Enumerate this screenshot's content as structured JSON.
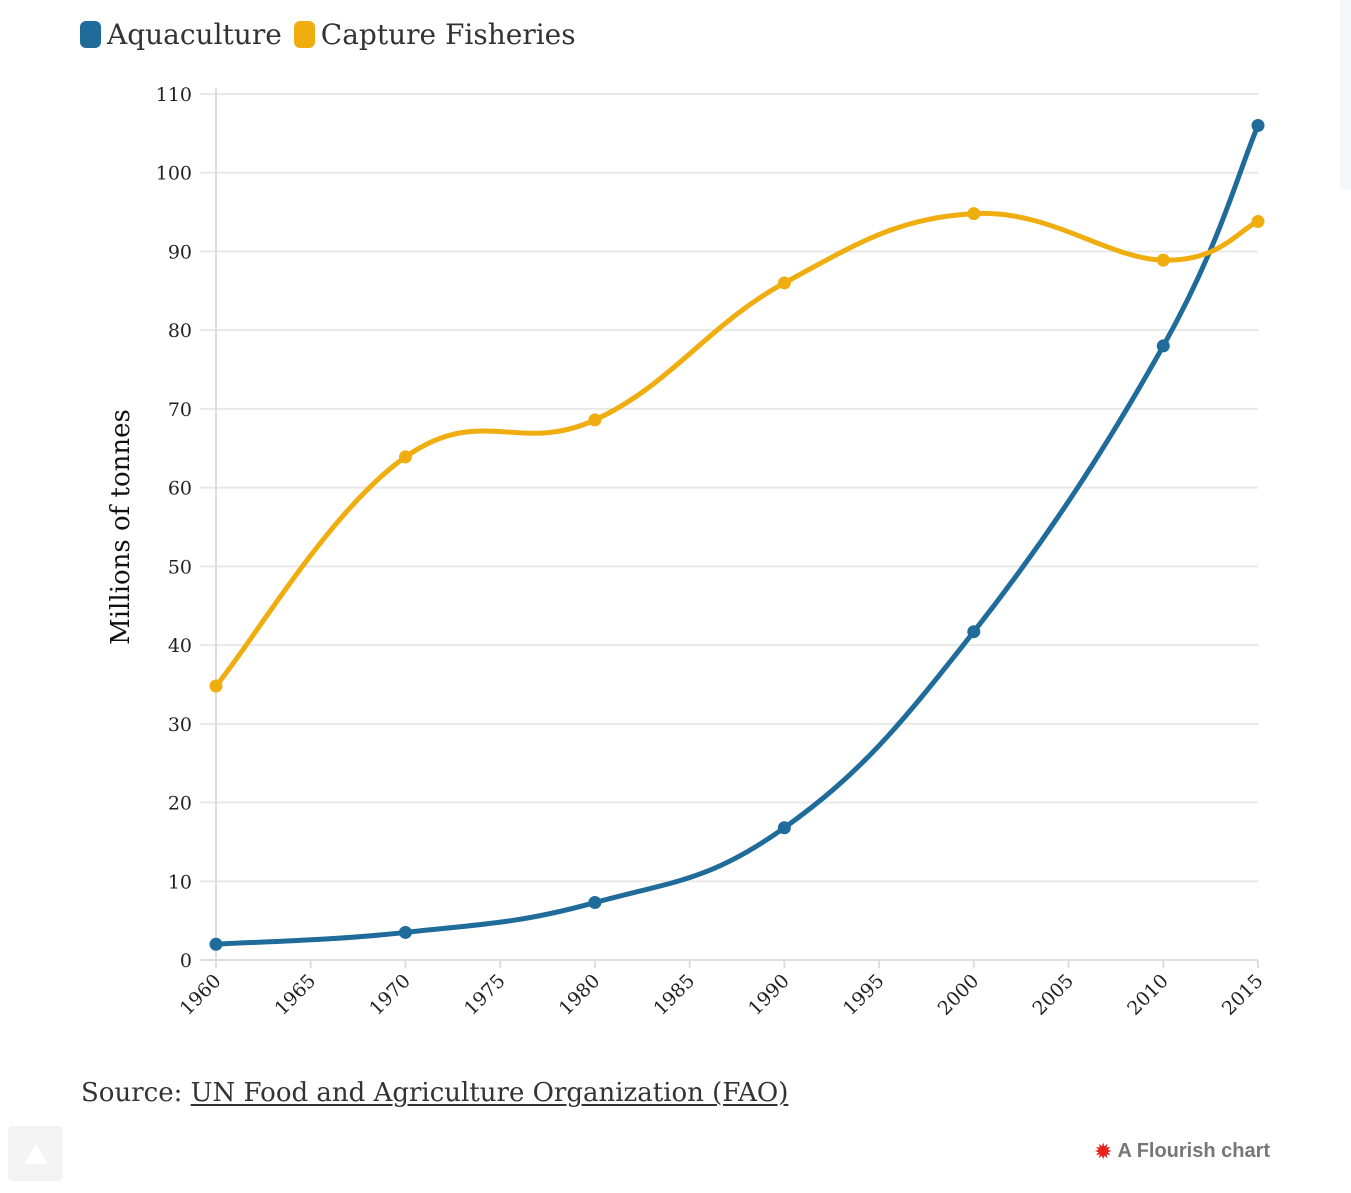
{
  "chart_data": {
    "type": "line",
    "ylabel": "Millions of tonnes",
    "ylim": [
      0,
      110
    ],
    "yticks": [
      0,
      10,
      20,
      30,
      40,
      50,
      60,
      70,
      80,
      90,
      100,
      110
    ],
    "xlim": [
      1960,
      2015
    ],
    "xticks": [
      "1960",
      "1965",
      "1970",
      "1975",
      "1980",
      "1985",
      "1990",
      "1995",
      "2000",
      "2005",
      "2010",
      "2015"
    ],
    "x": [
      1960,
      1970,
      1980,
      1990,
      2000,
      2010,
      2015
    ],
    "series": [
      {
        "name": "Aquaculture",
        "color": "#1f6b9a",
        "values": [
          2,
          3.5,
          7.3,
          16.8,
          41.7,
          78,
          106
        ]
      },
      {
        "name": "Capture Fisheries",
        "color": "#f0ad0f",
        "values": [
          34.8,
          63.9,
          68.6,
          86,
          94.8,
          88.9,
          93.8
        ]
      }
    ],
    "grid": true,
    "legend": "top-left"
  },
  "source": {
    "prefix": "Source: ",
    "link_text": "UN Food and Agriculture Organization (FAO)"
  },
  "credit": {
    "text": "A Flourish chart",
    "icon": "flourish-star-icon"
  },
  "scroll_top": {
    "icon": "triangle-up-icon"
  }
}
